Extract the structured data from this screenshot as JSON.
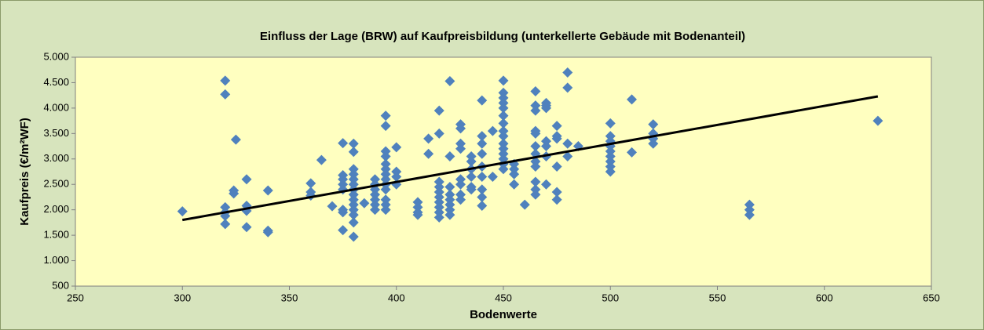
{
  "chart_data": {
    "type": "scatter",
    "title": "Einfluss der Lage (BRW) auf Kaufpreisbildung (unterkellerte Gebäude mit Bodenanteil)",
    "xlabel": "Bodenwerte",
    "ylabel": "Kaufpreis (€/m²WF)",
    "color": "#4f81bd",
    "x": [
      300,
      320,
      320,
      320,
      320,
      320,
      320,
      324,
      324,
      325,
      330,
      330,
      330,
      330,
      340,
      340,
      340,
      360,
      360,
      360,
      365,
      370,
      375,
      375,
      375,
      375,
      375,
      375,
      375,
      375,
      380,
      380,
      380,
      380,
      380,
      380,
      380,
      380,
      380,
      380,
      380,
      380,
      380,
      380,
      385,
      390,
      390,
      390,
      390,
      390,
      390,
      390,
      395,
      395,
      395,
      395,
      395,
      395,
      395,
      395,
      395,
      395,
      395,
      395,
      395,
      400,
      400,
      400,
      400,
      410,
      410,
      410,
      410,
      415,
      415,
      420,
      420,
      420,
      420,
      420,
      420,
      420,
      420,
      420,
      420,
      425,
      425,
      425,
      425,
      425,
      425,
      425,
      425,
      430,
      430,
      430,
      430,
      430,
      430,
      430,
      430,
      435,
      435,
      435,
      435,
      435,
      435,
      440,
      440,
      440,
      440,
      440,
      440,
      440,
      440,
      440,
      445,
      445,
      450,
      450,
      450,
      450,
      450,
      450,
      450,
      450,
      450,
      450,
      450,
      450,
      450,
      450,
      450,
      455,
      455,
      455,
      455,
      460,
      465,
      465,
      465,
      465,
      465,
      465,
      465,
      465,
      465,
      465,
      465,
      465,
      470,
      470,
      470,
      470,
      470,
      470,
      470,
      475,
      475,
      475,
      475,
      475,
      475,
      480,
      480,
      480,
      480,
      485,
      500,
      500,
      500,
      500,
      500,
      500,
      500,
      500,
      500,
      510,
      510,
      520,
      520,
      520,
      520,
      565,
      565,
      565,
      625
    ],
    "values": [
      1970,
      4540,
      4270,
      2050,
      1950,
      1880,
      1720,
      2380,
      2320,
      3380,
      2600,
      2080,
      1980,
      1660,
      2380,
      1590,
      1560,
      2520,
      2350,
      2280,
      2980,
      2070,
      3310,
      2680,
      2600,
      2500,
      2400,
      2000,
      1950,
      1600,
      3300,
      3140,
      2800,
      2700,
      2600,
      2500,
      2400,
      2300,
      2200,
      2100,
      2000,
      1900,
      1750,
      1470,
      2130,
      2600,
      2500,
      2400,
      2300,
      2200,
      2100,
      2000,
      3850,
      3650,
      3150,
      3050,
      2900,
      2800,
      2700,
      2600,
      2500,
      2400,
      2200,
      2100,
      2000,
      3230,
      2750,
      2650,
      2500,
      2150,
      2050,
      1950,
      1900,
      3400,
      3100,
      3950,
      3500,
      2550,
      2450,
      2350,
      2250,
      2150,
      2050,
      1950,
      1850,
      4530,
      3050,
      2450,
      2300,
      2200,
      2100,
      2000,
      1900,
      3680,
      3600,
      3300,
      3200,
      2600,
      2500,
      2300,
      2200,
      3050,
      2950,
      2800,
      2650,
      2450,
      2400,
      4150,
      3450,
      3300,
      3100,
      2850,
      2650,
      2400,
      2250,
      2080,
      3550,
      2650,
      4540,
      4300,
      4200,
      4100,
      4000,
      3850,
      3700,
      3550,
      3450,
      3300,
      3200,
      3100,
      3000,
      2900,
      2800,
      2900,
      2800,
      2700,
      2500,
      2100,
      4330,
      4050,
      3950,
      3550,
      3500,
      3250,
      3100,
      2950,
      2850,
      2550,
      2400,
      2300,
      4100,
      4050,
      4000,
      3350,
      3250,
      3050,
      2500,
      3650,
      3450,
      3400,
      2850,
      2350,
      2200,
      4700,
      4400,
      3300,
      3050,
      3250,
      3700,
      3450,
      3350,
      3250,
      3150,
      3050,
      2950,
      2850,
      2750,
      4170,
      3130,
      3680,
      3500,
      3400,
      3300,
      2100,
      2000,
      1900,
      3750
    ],
    "trendline": {
      "x": [
        300,
        625
      ],
      "values": [
        1800,
        4230
      ],
      "color": "#000000"
    },
    "xlim": [
      250,
      650
    ],
    "xticks": [
      250,
      300,
      350,
      400,
      450,
      500,
      550,
      600,
      650
    ],
    "ylim": [
      500,
      5000
    ],
    "yticks": [
      {
        "value": 500,
        "label": "500"
      },
      {
        "value": 1000,
        "label": "1.000"
      },
      {
        "value": 1500,
        "label": "1.500"
      },
      {
        "value": 2000,
        "label": "2.000"
      },
      {
        "value": 2500,
        "label": "2.500"
      },
      {
        "value": 3000,
        "label": "3.000"
      },
      {
        "value": 3500,
        "label": "3.500"
      },
      {
        "value": 4000,
        "label": "4.000"
      },
      {
        "value": 4500,
        "label": "4.500"
      },
      {
        "value": 5000,
        "label": "5.000"
      }
    ]
  }
}
